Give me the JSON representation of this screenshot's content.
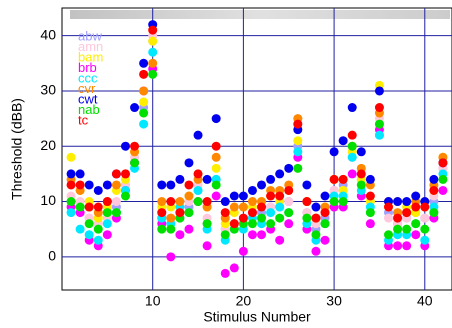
{
  "chart_data": {
    "type": "scatter",
    "x_label": "Stimulus Number",
    "y_label": "Threshold (dBB)",
    "x": [
      1,
      2,
      3,
      4,
      5,
      6,
      7,
      8,
      9,
      10,
      11,
      12,
      13,
      14,
      15,
      16,
      17,
      18,
      19,
      20,
      21,
      22,
      23,
      24,
      25,
      26,
      27,
      28,
      29,
      30,
      31,
      32,
      33,
      34,
      35,
      36,
      37,
      38,
      39,
      40,
      41,
      42
    ],
    "xlim": [
      0,
      43
    ],
    "xticks": [
      10,
      20,
      30,
      40
    ],
    "ylim": [
      -6,
      45
    ],
    "yticks": [
      0,
      10,
      20,
      30,
      40
    ],
    "grid": true,
    "legend": "upper left",
    "series": [
      {
        "name": "abw",
        "color": "#a0a0ff",
        "values": [
          10,
          9,
          7,
          6,
          8,
          9,
          13,
          17,
          27,
          39,
          7,
          7,
          7,
          9,
          12,
          6,
          14,
          5,
          6,
          7,
          8,
          8,
          9,
          9,
          10,
          20,
          8,
          5,
          7,
          12,
          13,
          18,
          14,
          10,
          22,
          8,
          6,
          7,
          8,
          7,
          10,
          16
        ]
      },
      {
        "name": "amn",
        "color": "#ffc8dc",
        "values": [
          11,
          10,
          7,
          6,
          7,
          10,
          13,
          18,
          28,
          40,
          8,
          7,
          9,
          10,
          13,
          7,
          14,
          5,
          6,
          7,
          8,
          9,
          9,
          9,
          10,
          25,
          8,
          6,
          8,
          12,
          12,
          18,
          13,
          10,
          25,
          7,
          6,
          7,
          8,
          7,
          11,
          16
        ]
      },
      {
        "name": "bam",
        "color": "#ffee00",
        "values": [
          18,
          12,
          10,
          7,
          9,
          12,
          14,
          19,
          28,
          39,
          9,
          9,
          8,
          11,
          15,
          9,
          16,
          6,
          8,
          9,
          9,
          10,
          11,
          10,
          12,
          21,
          10,
          7,
          9,
          14,
          12,
          19,
          14,
          10,
          31,
          9,
          10,
          9,
          8,
          9,
          12,
          18
        ]
      },
      {
        "name": "brb",
        "color": "#ff00ff",
        "values": [
          9,
          8,
          3,
          2,
          4,
          7,
          12,
          17,
          30,
          34,
          6,
          0,
          4,
          5,
          10,
          2,
          11,
          -3,
          -2,
          1,
          4,
          4,
          5,
          3,
          6,
          18,
          5,
          1,
          3,
          9,
          9,
          15,
          11,
          6,
          23,
          2,
          2,
          2,
          4,
          2,
          7,
          12
        ]
      },
      {
        "name": "ccc",
        "color": "#00e8ff",
        "values": [
          8,
          5,
          4,
          3,
          6,
          8,
          12,
          16,
          24,
          37,
          7,
          6,
          9,
          8,
          12,
          5,
          14,
          3,
          5,
          5,
          7,
          6,
          8,
          9,
          8,
          19,
          6,
          3,
          6,
          11,
          11,
          18,
          12,
          9,
          22,
          3,
          4,
          4,
          6,
          3,
          9,
          15
        ]
      },
      {
        "name": "cvr",
        "color": "#ff8800",
        "values": [
          14,
          12,
          9,
          8,
          10,
          13,
          15,
          19,
          30,
          35,
          10,
          7,
          10,
          11,
          14,
          9,
          18,
          7,
          9,
          9,
          10,
          10,
          12,
          12,
          13,
          25,
          10,
          7,
          9,
          14,
          14,
          20,
          16,
          13,
          26,
          10,
          8,
          8,
          10,
          10,
          13,
          18
        ]
      },
      {
        "name": "cwt",
        "color": "#0000ee",
        "values": [
          15,
          15,
          13,
          12,
          13,
          15,
          20,
          27,
          35,
          42,
          13,
          13,
          14,
          17,
          22,
          14,
          25,
          10,
          11,
          11,
          12,
          13,
          14,
          15,
          16,
          23,
          13,
          9,
          11,
          19,
          21,
          27,
          19,
          14,
          30,
          10,
          10,
          10,
          11,
          10,
          14,
          17
        ]
      },
      {
        "name": "nab",
        "color": "#00e000",
        "values": [
          10,
          9,
          6,
          5,
          8,
          8,
          11,
          17,
          26,
          33,
          5,
          5,
          7,
          8,
          10,
          6,
          13,
          4,
          5,
          6,
          6,
          7,
          6,
          7,
          8,
          16,
          7,
          4,
          6,
          10,
          10,
          20,
          13,
          8,
          24,
          4,
          5,
          5,
          6,
          5,
          8,
          14
        ]
      },
      {
        "name": "tc",
        "color": "#ff0000",
        "values": [
          13,
          13,
          9,
          9,
          10,
          15,
          15,
          20,
          33,
          41,
          8,
          10,
          8,
          13,
          15,
          10,
          20,
          8,
          6,
          7,
          8,
          9,
          11,
          11,
          12,
          24,
          10,
          7,
          8,
          14,
          14,
          22,
          15,
          11,
          27,
          9,
          7,
          8,
          9,
          9,
          12,
          17
        ]
      }
    ]
  }
}
